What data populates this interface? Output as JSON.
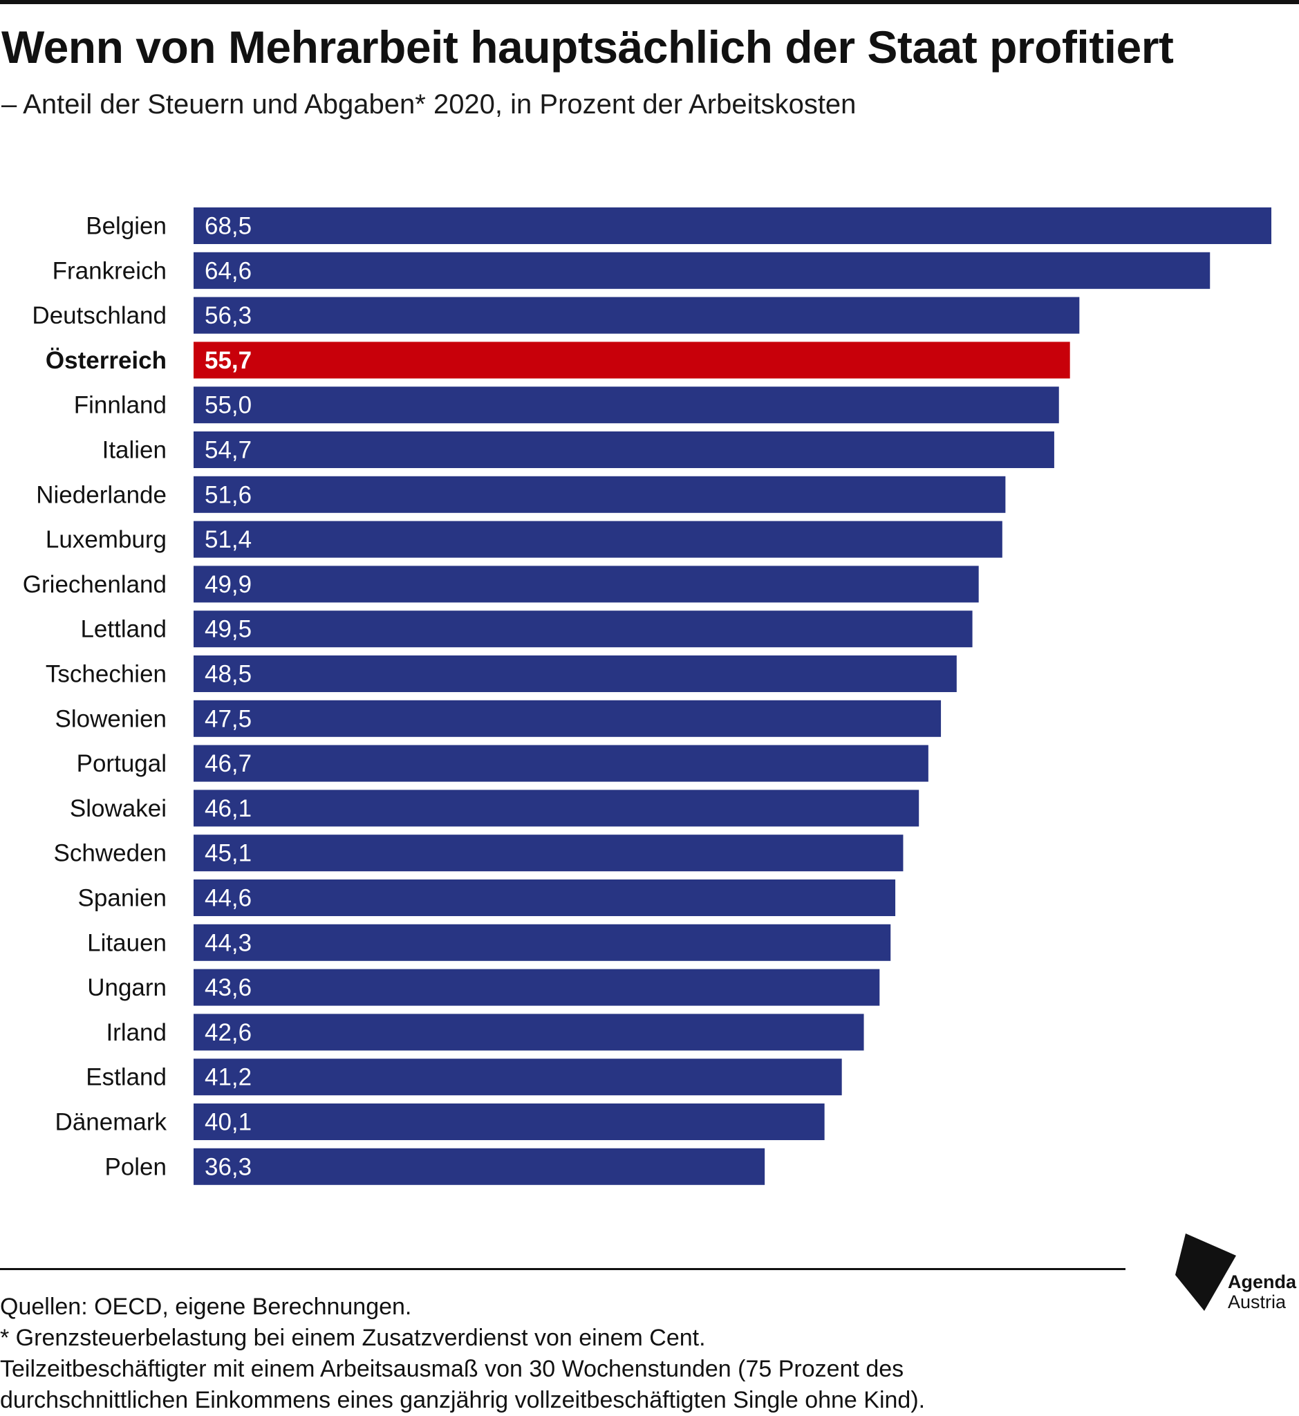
{
  "title": "Wenn von Mehrarbeit hauptsächlich der Staat profitiert",
  "subtitle": "– Anteil der Steuern und Abgaben* 2020, in Prozent der Arbeitskosten",
  "chart_data": {
    "type": "bar",
    "orientation": "horizontal",
    "categories": [
      "Belgien",
      "Frankreich",
      "Deutschland",
      "Österreich",
      "Finnland",
      "Italien",
      "Niederlande",
      "Luxemburg",
      "Griechenland",
      "Lettland",
      "Tschechien",
      "Slowenien",
      "Portugal",
      "Slowakei",
      "Schweden",
      "Spanien",
      "Litauen",
      "Ungarn",
      "Irland",
      "Estland",
      "Dänemark",
      "Polen"
    ],
    "values": [
      68.5,
      64.6,
      56.3,
      55.7,
      55.0,
      54.7,
      51.6,
      51.4,
      49.9,
      49.5,
      48.5,
      47.5,
      46.7,
      46.1,
      45.1,
      44.6,
      44.3,
      43.6,
      42.6,
      41.2,
      40.1,
      36.3
    ],
    "value_labels": [
      "68,5",
      "64,6",
      "56,3",
      "55,7",
      "55,0",
      "54,7",
      "51,6",
      "51,4",
      "49,9",
      "49,5",
      "48,5",
      "47,5",
      "46,7",
      "46,1",
      "45,1",
      "44,6",
      "44,3",
      "43,6",
      "42,6",
      "41,2",
      "40,1",
      "36,3"
    ],
    "highlight": "Österreich",
    "bar_color": "#283583",
    "highlight_color": "#c8000a",
    "value_label_color": "#ffffff",
    "xlim": [
      0,
      68.5
    ],
    "grid": false,
    "legend": "none"
  },
  "footnotes": {
    "sources": "Quellen: OECD, eigene Berechnungen.",
    "note_1": "* Grenzsteuerbelastung bei einem Zusatzverdienst von einem Cent.",
    "note_2": "Teilzeitbeschäftigter mit einem Arbeitsausmaß von 30 Wochenstunden (75 Prozent des",
    "note_3": "durchschnittlichen Einkommens eines ganzjährig vollzeitbeschäftigten Single ohne Kind)."
  },
  "logo": {
    "line1": "Agenda",
    "line2": "Austria"
  }
}
